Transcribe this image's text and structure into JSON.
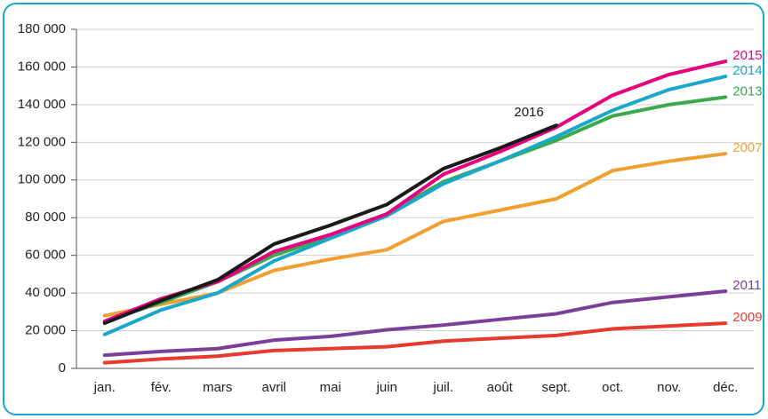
{
  "chart_data": {
    "type": "line",
    "categories": [
      "jan.",
      "fév.",
      "mars",
      "avril",
      "mai",
      "juin",
      "juil.",
      "août",
      "sept.",
      "oct.",
      "nov.",
      "déc."
    ],
    "series": [
      {
        "name": "2009",
        "color": "#e63a2e",
        "values": [
          3000,
          5000,
          6500,
          9500,
          10500,
          11500,
          14500,
          16000,
          17500,
          21000,
          22500,
          24000
        ]
      },
      {
        "name": "2011",
        "color": "#7b3f9a",
        "values": [
          7000,
          9000,
          10500,
          15000,
          17000,
          20500,
          23000,
          26000,
          29000,
          35000,
          38000,
          41000
        ]
      },
      {
        "name": "2007",
        "color": "#f0a030",
        "values": [
          28000,
          34000,
          40000,
          52000,
          58000,
          63000,
          78000,
          84000,
          90000,
          105000,
          110000,
          114000
        ]
      },
      {
        "name": "2013",
        "color": "#3aaa4a",
        "values": [
          25000,
          35000,
          46000,
          60000,
          70000,
          82000,
          99000,
          110000,
          121000,
          134000,
          140000,
          144000
        ]
      },
      {
        "name": "2014",
        "color": "#1aa7c9",
        "values": [
          18000,
          31000,
          40000,
          57000,
          69000,
          81000,
          98000,
          110000,
          123000,
          137000,
          148000,
          155000
        ]
      },
      {
        "name": "2015",
        "color": "#e6007e",
        "values": [
          25000,
          37000,
          46000,
          62000,
          71000,
          82000,
          103000,
          115000,
          128000,
          145000,
          156000,
          163000
        ]
      },
      {
        "name": "2016",
        "color": "#1a1a1a",
        "values": [
          24000,
          36000,
          47000,
          66000,
          76000,
          87000,
          106000,
          117000,
          129000,
          null,
          null,
          null
        ]
      }
    ],
    "ylim": [
      0,
      180000
    ],
    "yticks": [
      0,
      {
        "value": 20000,
        "label": "20 000"
      },
      {
        "value": 40000,
        "label": "40 000"
      },
      {
        "value": 60000,
        "label": "60 000"
      },
      {
        "value": 80000,
        "label": "80 000"
      },
      {
        "value": 100000,
        "label": "100 000"
      },
      {
        "value": 120000,
        "label": "120 000"
      },
      {
        "value": 140000,
        "label": "140 000"
      },
      {
        "value": 160000,
        "label": "160 000"
      },
      {
        "value": 180000,
        "label": "180 000"
      }
    ],
    "grid": true
  }
}
